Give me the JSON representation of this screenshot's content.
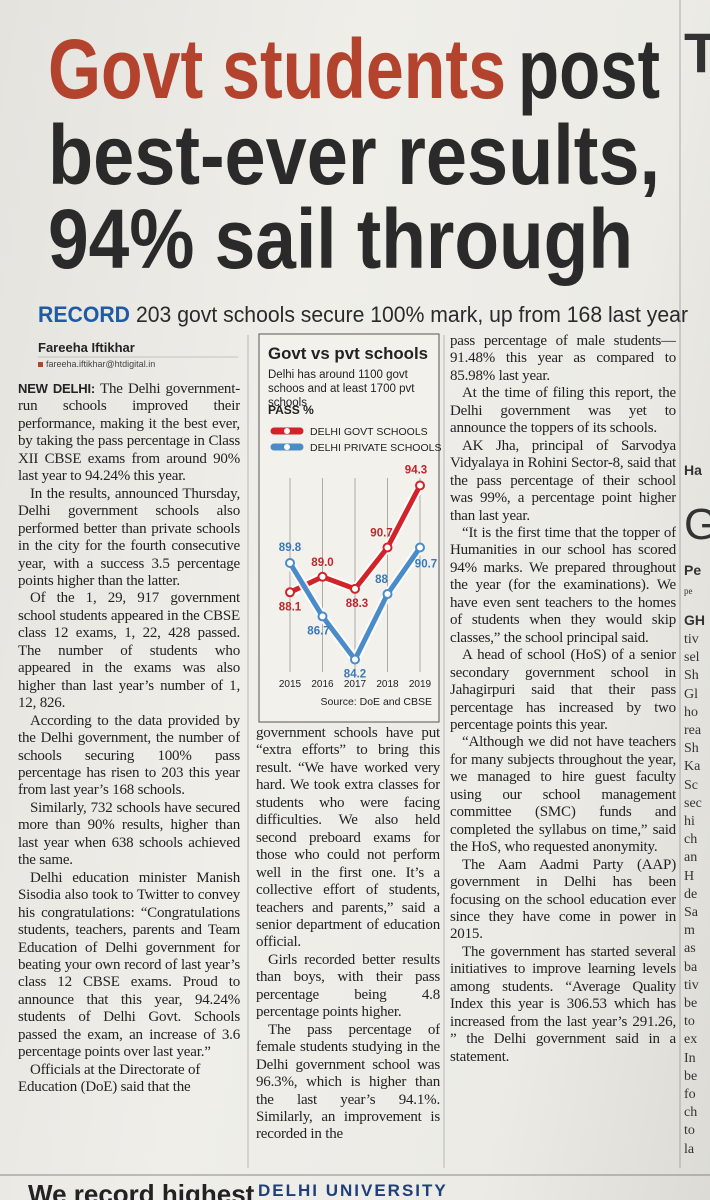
{
  "headline": {
    "red": "Govt students",
    "dark": "post",
    "line2": "best-ever results,",
    "line3": "94% sail through"
  },
  "subhead": {
    "kicker": "RECORD",
    "text": "203 govt schools secure 100% mark, up from 168 last year"
  },
  "byline": {
    "name": "Fareeha Iftikhar",
    "email": "fareeha.iftikhar@htdigital.in"
  },
  "columns": [
    {
      "dateline": "NEW DELHI:",
      "paragraphs": [
        "The Delhi government-run schools improved their performance, making it the best ever, by taking the pass percentage in Class XII CBSE exams from around 90% last year to 94.24% this year.",
        "In the results, announced Thursday, Delhi government schools also performed better than private schools in the city for the fourth consecutive year, with a success 3.5 percentage points higher than the latter.",
        "Of the 1, 29, 917 government school students appeared in the CBSE class 12 exams, 1, 22, 428 passed. The number of students who appeared in the exams was also higher than last year’s number of 1, 12, 826.",
        "According to the data provided by the Delhi government, the number of schools securing 100% pass percentage has risen to 203 this year from last year’s 168 schools.",
        "Similarly, 732 schools have secured more than 90% results, higher than last year when 638 schools achieved the same.",
        "Delhi education minister Manish Sisodia also took to Twitter to convey his congratulations: “Congratulations students, teachers, parents and Team Education of Delhi government for beating your own record of last year’s class 12 CBSE exams. Proud to announce that this year, 94.24% students of Delhi Govt. Schools passed the exam, an increase of 3.6 percentage points over last year.”",
        "Officials at the Directorate of Education (DoE) said that the"
      ]
    },
    {
      "paragraphs": [
        "government schools have put “extra efforts” to bring this result. “We have worked very hard. We took extra classes for students who were facing difficulties. We also held second preboard exams for those who could not perform well in the first one. It’s a collective effort of students, teachers and parents,” said a senior department of education official.",
        "Girls recorded better results than boys, with their pass percentage being 4.8 percentage points higher.",
        "The pass percentage of female students studying in the Delhi government school was 96.3%, which is higher than the last year’s 94.1%. Similarly, an improvement is recorded in the"
      ]
    },
    {
      "paragraphs": [
        "pass percentage of male students—91.48% this year as compared to 85.98% last year.",
        "At the time of filing this report, the Delhi government was yet to announce the toppers of its schools.",
        "AK Jha, principal of Sarvodya Vidyalaya in Rohini Sector-8, said that the pass percentage of their school was 99%, a percentage point higher than last year.",
        "“It is the first time that the topper of Humanities in our school has scored 94% marks. We prepared throughout the year (for the examinations). We have even sent teachers to the homes of students when they would skip classes,” the school principal said.",
        "A head of school (HoS) of a senior secondary government school in Jahagirpuri said that their pass percentage has increased by two percentage points this year.",
        "“Although we did not have teachers for many subjects throughout the year, we managed to hire guest faculty using our school management committee (SMC) funds and completed the syllabus on time,” said the HoS, who requested anonymity.",
        "The Aam Aadmi Party (AAP) government in Delhi has been focusing on the school education ever since they have come in power in 2015.",
        "The government has started several initiatives to improve learning levels among students. “Average Quality Index this year is 306.53 which has increased from the last year’s 291.26, ” the Delhi government said in a statement."
      ]
    }
  ],
  "chart_data": {
    "type": "line",
    "title": "Govt vs pvt schools",
    "subtitle": "Delhi has around 1100 govt schoos and at least 1700 pvt schools",
    "y_label": "PASS %",
    "source": "Source: DoE and CBSE",
    "categories": [
      "2015",
      "2016",
      "2017",
      "2018",
      "2019"
    ],
    "series": [
      {
        "name": "DELHI GOVT SCHOOLS",
        "color": "#d2232a",
        "values": [
          88.1,
          89.0,
          88.3,
          90.7,
          94.3
        ],
        "value_labels": [
          "88.1",
          "89.0",
          "88.3",
          "90.7",
          "94.3"
        ]
      },
      {
        "name": "DELHI PRIVATE SCHOOLS",
        "color": "#4a8cc9",
        "values": [
          89.8,
          86.7,
          84.2,
          88,
          90.7
        ],
        "value_labels": [
          "89.8",
          "86.7",
          "84.2",
          "88",
          "90.7"
        ]
      }
    ],
    "ylim": [
      83.3,
      95.2
    ],
    "grid": true
  },
  "sidebar": {
    "fragments": [
      "T",
      "Ha",
      "G",
      "Pe",
      "pe",
      "GH",
      "tiv",
      "sel",
      "Sh",
      "Gl",
      "ho",
      "rea",
      "Sh",
      "Ka",
      "Sc",
      "sec",
      "hi",
      "ch",
      "an",
      "H",
      "de",
      "Sa",
      "m",
      "as",
      "ba",
      "tiv",
      "be",
      "to",
      "ex",
      "In",
      "be",
      "fo",
      "ch",
      "to",
      "la"
    ]
  },
  "footer": {
    "left": "We record highest",
    "right": "DELHI UNIVERSITY"
  }
}
